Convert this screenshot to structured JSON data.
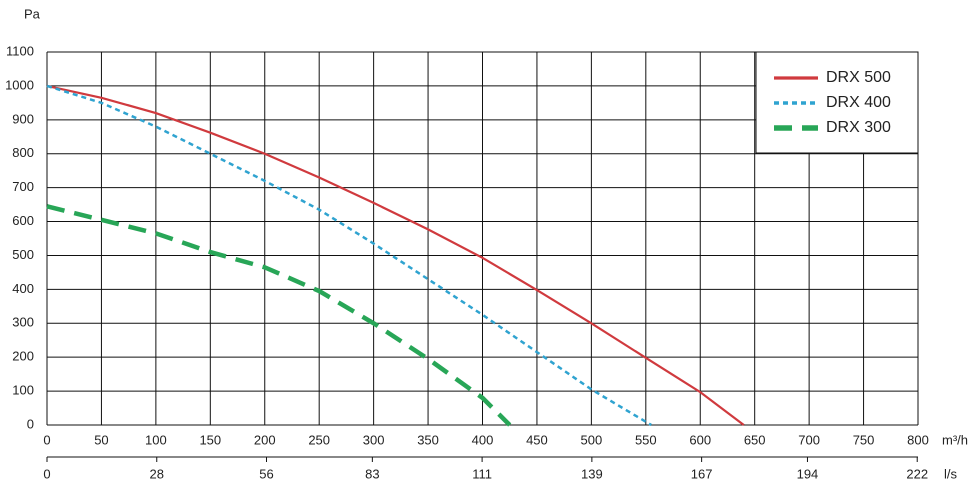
{
  "chart_data": {
    "type": "line",
    "ylabel": "Pa",
    "xlabel": "m³/h",
    "x2label": "l/s",
    "xlim": [
      0,
      800
    ],
    "xticks": [
      0,
      50,
      100,
      150,
      200,
      250,
      300,
      350,
      400,
      450,
      500,
      550,
      600,
      650,
      700,
      750,
      800
    ],
    "x2lim": [
      0,
      222.2
    ],
    "x2ticks": [
      0,
      28,
      56,
      83,
      111,
      139,
      167,
      194,
      222
    ],
    "ylim": [
      0,
      1100
    ],
    "yticks": [
      0,
      100,
      200,
      300,
      400,
      500,
      600,
      700,
      800,
      900,
      1000,
      1100
    ],
    "grid": true,
    "legend": "upper right",
    "series": [
      {
        "name": "DRX 500",
        "color": "#d03a3e",
        "style": "solid",
        "x": [
          0,
          50,
          100,
          150,
          200,
          250,
          300,
          350,
          400,
          450,
          500,
          550,
          600,
          640
        ],
        "values": [
          1000,
          965,
          920,
          862,
          800,
          730,
          655,
          577,
          493,
          398,
          300,
          198,
          97,
          0
        ]
      },
      {
        "name": "DRX 400",
        "color": "#2fa3d0",
        "style": "dotted",
        "x": [
          0,
          50,
          100,
          150,
          200,
          250,
          300,
          350,
          400,
          450,
          500,
          555
        ],
        "values": [
          1000,
          950,
          880,
          800,
          720,
          635,
          535,
          430,
          325,
          215,
          105,
          0
        ]
      },
      {
        "name": "DRX 300",
        "color": "#28a657",
        "style": "dashed",
        "x": [
          0,
          50,
          100,
          150,
          200,
          250,
          300,
          350,
          400,
          425
        ],
        "values": [
          645,
          605,
          565,
          510,
          465,
          395,
          300,
          195,
          80,
          0
        ]
      }
    ]
  }
}
